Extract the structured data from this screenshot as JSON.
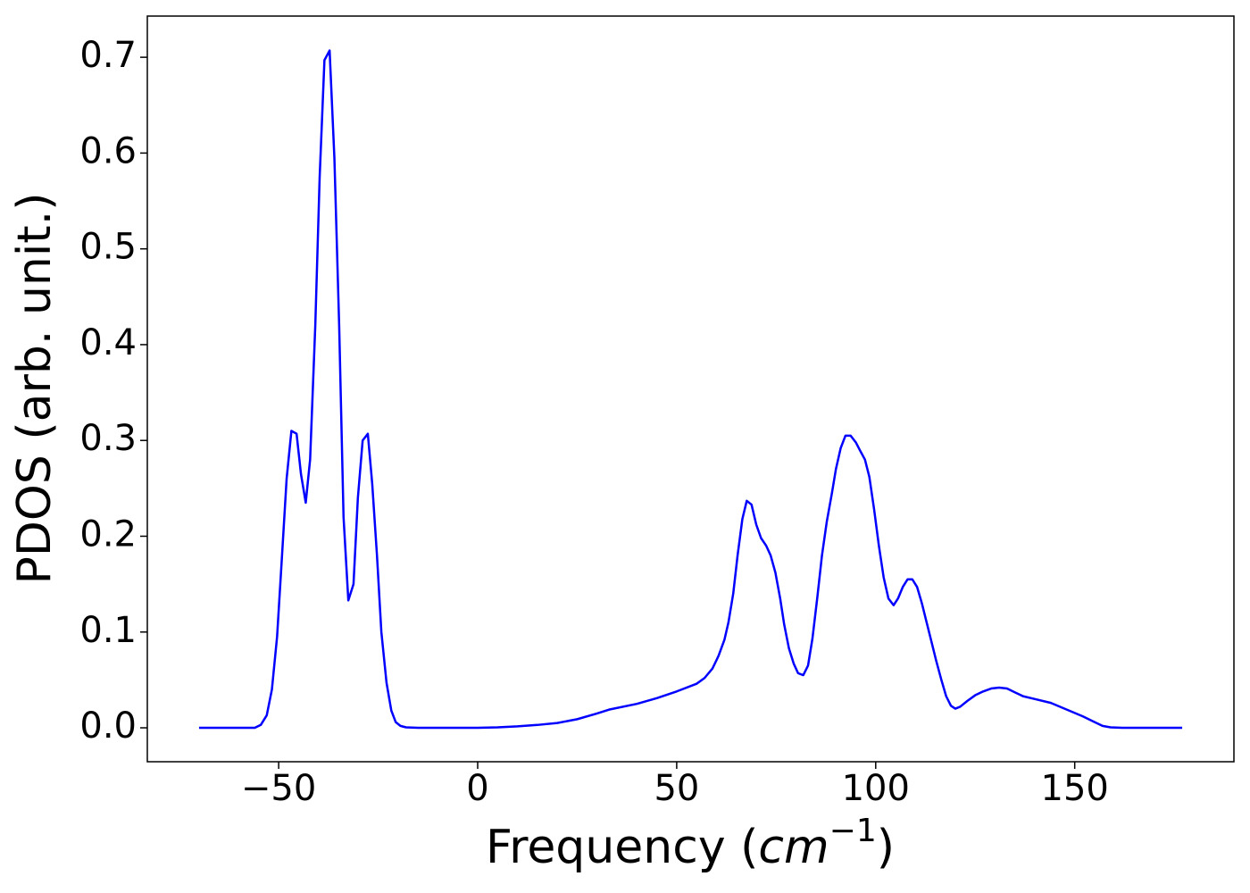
{
  "chart_data": {
    "type": "line",
    "xlabel": [
      "Frequency (",
      "cm",
      "−1",
      ")"
    ],
    "ylabel": "PDOS (arb. unit.)",
    "xlim": [
      -83,
      190
    ],
    "ylim": [
      -0.0354,
      0.743
    ],
    "xticks": [
      {
        "value": -50,
        "label": "−50"
      },
      0,
      50,
      100,
      150
    ],
    "yticks": [
      {
        "value": 0,
        "label": "0.0"
      },
      0.1,
      0.2,
      0.3,
      0.4,
      0.5,
      0.6,
      0.7
    ],
    "series": [
      {
        "color": "#0000ff",
        "x": [
          -70,
          -56,
          -54.5,
          -53,
          -51.7,
          -50.4,
          -49.3,
          -48,
          -46.8,
          -45.5,
          -44.4,
          -43.2,
          -42.1,
          -40.8,
          -39.7,
          -38.5,
          -37.2,
          -36,
          -34.8,
          -33.7,
          -32.5,
          -31.2,
          -30.1,
          -28.9,
          -27.6,
          -26.5,
          -25.3,
          -24.2,
          -22.9,
          -21.7,
          -20.6,
          -19.4,
          -18,
          -15,
          0,
          5,
          10,
          15,
          20,
          25,
          30,
          33,
          40,
          45,
          50,
          55,
          57,
          59,
          60.5,
          62,
          63,
          64.2,
          65.3,
          66.5,
          67.6,
          68.8,
          70,
          71.2,
          72.5,
          73.6,
          74.8,
          76,
          77,
          78.2,
          79.4,
          80.5,
          81.8,
          83,
          84.1,
          85.3,
          86.5,
          87.7,
          89,
          90,
          91.2,
          92.4,
          93.7,
          95,
          96,
          97.3,
          98.4,
          99.6,
          100.8,
          102,
          103.2,
          104.5,
          105.6,
          106.8,
          108,
          109.2,
          110.4,
          111.6,
          112.8,
          114,
          115.2,
          116.5,
          117.7,
          118.9,
          120,
          121.2,
          123,
          125,
          127,
          129,
          131,
          133,
          135,
          137,
          140,
          144,
          148,
          152,
          155,
          157,
          159,
          162,
          177
        ],
        "values": [
          0,
          0,
          0.003,
          0.013,
          0.04,
          0.095,
          0.17,
          0.26,
          0.31,
          0.307,
          0.265,
          0.235,
          0.28,
          0.42,
          0.575,
          0.697,
          0.707,
          0.595,
          0.42,
          0.22,
          0.133,
          0.15,
          0.24,
          0.3,
          0.307,
          0.255,
          0.18,
          0.1,
          0.047,
          0.018,
          0.006,
          0.002,
          0.0005,
          0,
          0,
          0.0005,
          0.0015,
          0.003,
          0.005,
          0.009,
          0.015,
          0.019,
          0.025,
          0.031,
          0.038,
          0.046,
          0.052,
          0.062,
          0.075,
          0.092,
          0.11,
          0.14,
          0.18,
          0.218,
          0.237,
          0.233,
          0.212,
          0.198,
          0.19,
          0.18,
          0.162,
          0.135,
          0.108,
          0.083,
          0.067,
          0.057,
          0.055,
          0.065,
          0.093,
          0.135,
          0.18,
          0.215,
          0.245,
          0.27,
          0.292,
          0.305,
          0.305,
          0.298,
          0.29,
          0.28,
          0.262,
          0.228,
          0.19,
          0.157,
          0.135,
          0.128,
          0.135,
          0.147,
          0.155,
          0.155,
          0.147,
          0.13,
          0.11,
          0.09,
          0.07,
          0.05,
          0.033,
          0.023,
          0.02,
          0.022,
          0.028,
          0.034,
          0.038,
          0.041,
          0.042,
          0.041,
          0.037,
          0.033,
          0.03,
          0.026,
          0.019,
          0.012,
          0.006,
          0.002,
          0.0005,
          0,
          0
        ]
      }
    ]
  }
}
